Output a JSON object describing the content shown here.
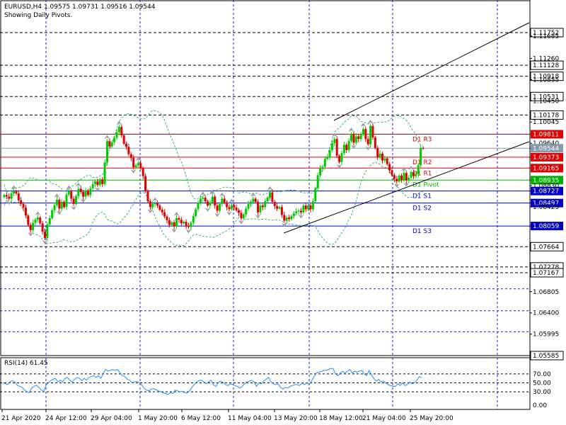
{
  "header": {
    "title": "EURUSD,H4  1.09575 1.09731 1.09516 1.09544",
    "subtitle": "Showing Daily Pivots."
  },
  "rsi_label": "RSI(14) 61.45",
  "colors": {
    "up": "#00cc00",
    "down": "#e00000",
    "resistance": "#e00000",
    "support": "#0000c8",
    "pivot": "#00b000",
    "grid": "#1c1cc8",
    "bollinger": "#3cb371",
    "rsi": "#1e90ff",
    "price_tag": "#8899aa"
  },
  "chart_data": [
    {
      "type": "line",
      "title": "EURUSD,H4  1.09575 1.09731 1.09516 1.09544",
      "ylim": [
        1.05585,
        1.1232
      ],
      "x_ticks": [
        "21 Apr 2020",
        "24 Apr 12:00",
        "29 Apr 04:00",
        "1 May 20:00",
        "6 May 12:00",
        "11 May 04:00",
        "13 May 20:00",
        "18 May 12:00",
        "21 May 04:00",
        "25 May 20:00"
      ],
      "y_ticks": [
        "1.11752",
        "1.11685",
        "1.11260",
        "1.11128",
        "1.10918",
        "1.10855",
        "1.10531",
        "1.10450",
        "1.10178",
        "1.10045",
        "1.09811",
        "1.09640",
        "1.09544",
        "1.09373",
        "1.09165",
        "1.08935",
        "1.08830",
        "1.08727",
        "1.08497",
        "1.08425",
        "1.08059",
        "1.07664",
        "1.07278",
        "1.07167",
        "1.06805",
        "1.06400",
        "1.05995",
        "1.05585"
      ],
      "levels": [
        {
          "name": "D1 R3",
          "value": 1.09811,
          "color": "resistance"
        },
        {
          "name": "D1 R2",
          "value": 1.09373,
          "color": "resistance"
        },
        {
          "name": "D1 R1",
          "value": 1.09165,
          "color": "resistance"
        },
        {
          "name": "D1 Pivot",
          "value": 1.08935,
          "color": "pivot"
        },
        {
          "name": "D1 S1",
          "value": 1.08727,
          "color": "support"
        },
        {
          "name": "D1 S2",
          "value": 1.08497,
          "color": "support"
        },
        {
          "name": "D1 S3",
          "value": 1.08059,
          "color": "support"
        }
      ],
      "current_price": 1.09544,
      "fractal_levels": [
        1.11752,
        1.11128,
        1.10918,
        1.10531,
        1.10178,
        1.07664,
        1.07278,
        1.07167
      ],
      "close": [
        1.0865,
        1.0862,
        1.0858,
        1.0868,
        1.0872,
        1.0868,
        1.0855,
        1.0848,
        1.0841,
        1.0826,
        1.0808,
        1.0798,
        1.0812,
        1.0818,
        1.0822,
        1.0811,
        1.0795,
        1.0783,
        1.0809,
        1.0821,
        1.0836,
        1.0846,
        1.0856,
        1.0839,
        1.0852,
        1.0842,
        1.0866,
        1.0872,
        1.0858,
        1.0848,
        1.0863,
        1.0877,
        1.0871,
        1.0862,
        1.0874,
        1.0865,
        1.0878,
        1.0886,
        1.0891,
        1.0884,
        1.0895,
        1.0886,
        1.0927,
        1.0968,
        1.0958,
        1.0966,
        1.0974,
        1.0985,
        1.0995,
        1.0979,
        1.0963,
        1.0957,
        1.0943,
        1.0936,
        1.0918,
        1.0922,
        1.0926,
        1.0916,
        1.0901,
        1.0873,
        1.0853,
        1.0842,
        1.0848,
        1.0849,
        1.0845,
        1.0837,
        1.0832,
        1.0824,
        1.0817,
        1.0808,
        1.0813,
        1.0805,
        1.0821,
        1.0818,
        1.0811,
        1.0814,
        1.0806,
        1.0804,
        1.0812,
        1.0825,
        1.0838,
        1.085,
        1.0858,
        1.086,
        1.0853,
        1.0845,
        1.0851,
        1.0862,
        1.0845,
        1.0835,
        1.0848,
        1.0858,
        1.0851,
        1.0842,
        1.0838,
        1.0846,
        1.0841,
        1.0836,
        1.0831,
        1.0821,
        1.0828,
        1.0839,
        1.0848,
        1.0852,
        1.0858,
        1.0852,
        1.0832,
        1.0845,
        1.0842,
        1.0853,
        1.086,
        1.087,
        1.0852,
        1.0844,
        1.0839,
        1.0842,
        1.0827,
        1.0816,
        1.0822,
        1.0819,
        1.0825,
        1.083,
        1.0834,
        1.0835,
        1.0832,
        1.0845,
        1.0838,
        1.0845,
        1.0838,
        1.0853,
        1.0878,
        1.0903,
        1.0916,
        1.0919,
        1.0934,
        1.0937,
        1.0951,
        1.0964,
        1.0972,
        1.094,
        1.0928,
        1.0945,
        1.0961,
        1.0951,
        1.0968,
        1.0982,
        1.0965,
        1.0977,
        1.0972,
        1.098,
        1.0991,
        1.0972,
        1.0962,
        1.0997,
        1.0975,
        1.0955,
        1.0937,
        1.0944,
        1.0931,
        1.0935,
        1.0924,
        1.0912,
        1.0903,
        1.0896,
        1.0891,
        1.0902,
        1.0894,
        1.0907,
        1.0893,
        1.0898,
        1.0909,
        1.0901,
        1.0905,
        1.0922,
        1.0955,
        1.0954
      ]
    },
    {
      "type": "line",
      "title": "RSI(14) 61.45",
      "ylim": [
        0,
        100
      ],
      "y_ticks": [
        "70.00",
        "50.00",
        "30.00",
        "0.00"
      ],
      "levels": [
        70,
        50,
        30
      ],
      "values": [
        50,
        48,
        46,
        52,
        55,
        52,
        45,
        42,
        40,
        35,
        30,
        28,
        38,
        42,
        45,
        40,
        35,
        30,
        44,
        50,
        55,
        58,
        60,
        52,
        56,
        52,
        60,
        62,
        56,
        52,
        58,
        62,
        60,
        55,
        60,
        56,
        62,
        64,
        66,
        62,
        66,
        60,
        72,
        80,
        76,
        78,
        80,
        78,
        80,
        72,
        66,
        64,
        58,
        56,
        50,
        52,
        54,
        50,
        46,
        38,
        34,
        32,
        36,
        37,
        35,
        32,
        30,
        28,
        26,
        24,
        28,
        26,
        34,
        32,
        30,
        31,
        28,
        27,
        32,
        40,
        46,
        52,
        55,
        56,
        52,
        48,
        52,
        56,
        46,
        42,
        50,
        54,
        51,
        46,
        44,
        48,
        46,
        44,
        42,
        38,
        42,
        48,
        52,
        54,
        56,
        52,
        42,
        50,
        48,
        54,
        58,
        62,
        52,
        48,
        46,
        48,
        40,
        36,
        40,
        38,
        42,
        44,
        46,
        46,
        44,
        50,
        46,
        50,
        46,
        54,
        64,
        72,
        74,
        75,
        78,
        78,
        80,
        82,
        82,
        70,
        66,
        72,
        76,
        72,
        76,
        80,
        72,
        76,
        74,
        76,
        78,
        70,
        66,
        78,
        68,
        60,
        54,
        58,
        52,
        54,
        50,
        46,
        44,
        42,
        42,
        48,
        44,
        50,
        44,
        46,
        52,
        48,
        50,
        56,
        64,
        61.45
      ]
    }
  ]
}
